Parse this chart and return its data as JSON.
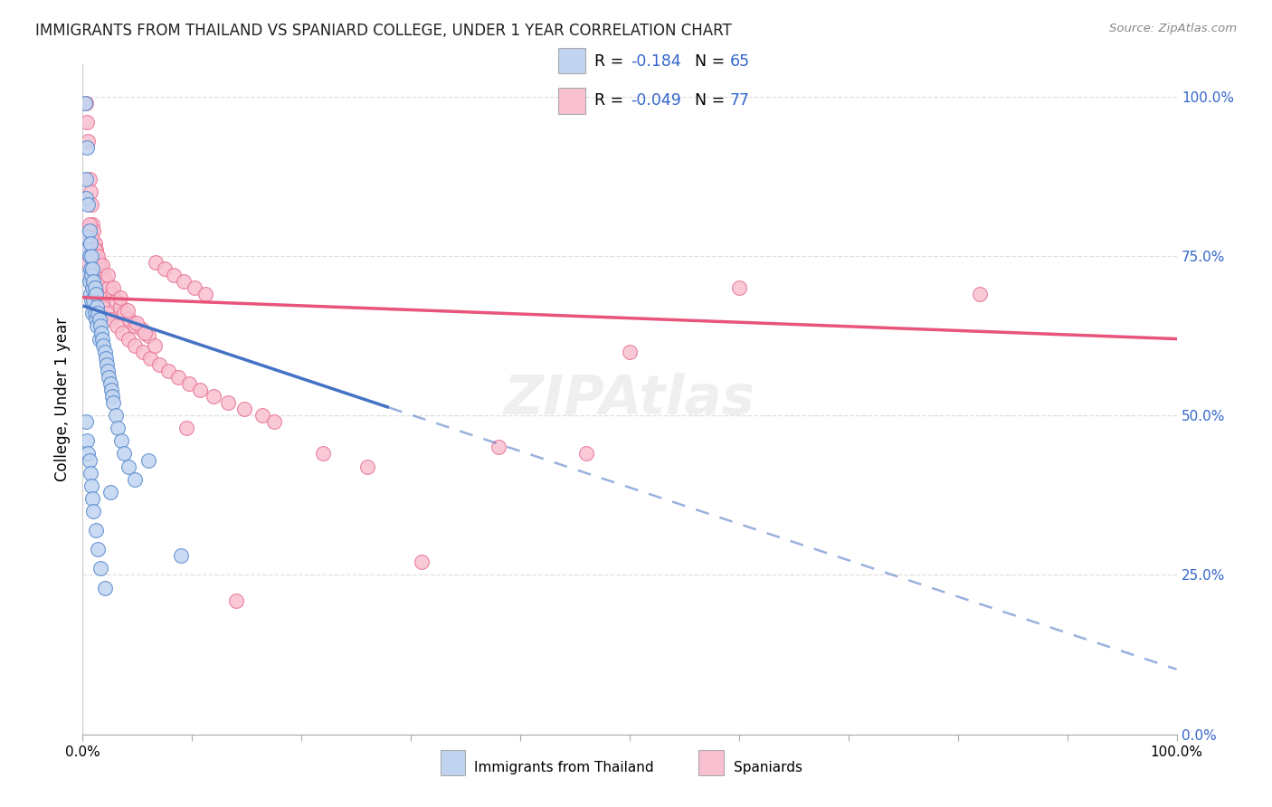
{
  "title": "IMMIGRANTS FROM THAILAND VS SPANIARD COLLEGE, UNDER 1 YEAR CORRELATION CHART",
  "source": "Source: ZipAtlas.com",
  "ylabel": "College, Under 1 year",
  "right_yticks": [
    0.0,
    0.25,
    0.5,
    0.75,
    1.0
  ],
  "right_yticklabels": [
    "0.0%",
    "25.0%",
    "50.0%",
    "75.0%",
    "100.0%"
  ],
  "xlim": [
    0.0,
    1.0
  ],
  "ylim": [
    0.0,
    1.05
  ],
  "thailand_R": "-0.184",
  "thailand_N": "65",
  "spaniard_R": "-0.049",
  "spaniard_N": "77",
  "thailand_line_color": "#4472c4",
  "spaniard_line_color": "#e8547a",
  "thailand_scatter_facecolor": "#c0d4f0",
  "thailand_scatter_edgecolor": "#5588cc",
  "spaniard_scatter_facecolor": "#f8c0d0",
  "spaniard_scatter_edgecolor": "#e87090",
  "background_color": "#ffffff",
  "grid_color": "#e0e0e0",
  "title_color": "#222222",
  "right_axis_color": "#3366cc",
  "thailand_x": [
    0.002,
    0.003,
    0.003,
    0.004,
    0.004,
    0.005,
    0.005,
    0.005,
    0.006,
    0.006,
    0.006,
    0.007,
    0.007,
    0.007,
    0.008,
    0.008,
    0.008,
    0.009,
    0.009,
    0.009,
    0.01,
    0.01,
    0.011,
    0.011,
    0.012,
    0.012,
    0.013,
    0.013,
    0.014,
    0.015,
    0.015,
    0.016,
    0.017,
    0.018,
    0.019,
    0.02,
    0.021,
    0.022,
    0.023,
    0.024,
    0.025,
    0.026,
    0.027,
    0.028,
    0.03,
    0.032,
    0.035,
    0.038,
    0.042,
    0.048,
    0.003,
    0.004,
    0.005,
    0.006,
    0.007,
    0.008,
    0.009,
    0.01,
    0.012,
    0.014,
    0.016,
    0.02,
    0.025,
    0.06,
    0.09
  ],
  "thailand_y": [
    0.99,
    0.87,
    0.84,
    0.92,
    0.78,
    0.83,
    0.76,
    0.72,
    0.79,
    0.75,
    0.71,
    0.77,
    0.73,
    0.69,
    0.75,
    0.72,
    0.68,
    0.73,
    0.7,
    0.66,
    0.71,
    0.68,
    0.7,
    0.66,
    0.69,
    0.65,
    0.67,
    0.64,
    0.66,
    0.65,
    0.62,
    0.64,
    0.63,
    0.62,
    0.61,
    0.6,
    0.59,
    0.58,
    0.57,
    0.56,
    0.55,
    0.54,
    0.53,
    0.52,
    0.5,
    0.48,
    0.46,
    0.44,
    0.42,
    0.4,
    0.49,
    0.46,
    0.44,
    0.43,
    0.41,
    0.39,
    0.37,
    0.35,
    0.32,
    0.29,
    0.26,
    0.23,
    0.38,
    0.43,
    0.28
  ],
  "spaniard_x": [
    0.003,
    0.004,
    0.005,
    0.006,
    0.007,
    0.008,
    0.009,
    0.01,
    0.011,
    0.012,
    0.013,
    0.015,
    0.017,
    0.019,
    0.021,
    0.024,
    0.027,
    0.03,
    0.034,
    0.038,
    0.043,
    0.048,
    0.054,
    0.06,
    0.067,
    0.075,
    0.083,
    0.092,
    0.102,
    0.112,
    0.003,
    0.005,
    0.007,
    0.009,
    0.012,
    0.015,
    0.018,
    0.022,
    0.026,
    0.031,
    0.036,
    0.042,
    0.048,
    0.055,
    0.062,
    0.07,
    0.078,
    0.087,
    0.097,
    0.107,
    0.12,
    0.133,
    0.148,
    0.164,
    0.006,
    0.008,
    0.011,
    0.014,
    0.018,
    0.023,
    0.028,
    0.034,
    0.041,
    0.049,
    0.057,
    0.066,
    0.82,
    0.5,
    0.38,
    0.6,
    0.26,
    0.31,
    0.175,
    0.22,
    0.46,
    0.14,
    0.095
  ],
  "spaniard_y": [
    0.99,
    0.96,
    0.93,
    0.87,
    0.85,
    0.83,
    0.8,
    0.79,
    0.77,
    0.76,
    0.75,
    0.74,
    0.73,
    0.72,
    0.71,
    0.7,
    0.69,
    0.68,
    0.67,
    0.66,
    0.65,
    0.64,
    0.635,
    0.625,
    0.74,
    0.73,
    0.72,
    0.71,
    0.7,
    0.69,
    0.76,
    0.74,
    0.72,
    0.71,
    0.695,
    0.685,
    0.67,
    0.66,
    0.65,
    0.64,
    0.63,
    0.62,
    0.61,
    0.6,
    0.59,
    0.58,
    0.57,
    0.56,
    0.55,
    0.54,
    0.53,
    0.52,
    0.51,
    0.5,
    0.8,
    0.78,
    0.76,
    0.75,
    0.735,
    0.72,
    0.7,
    0.685,
    0.665,
    0.645,
    0.63,
    0.61,
    0.69,
    0.6,
    0.45,
    0.7,
    0.42,
    0.27,
    0.49,
    0.44,
    0.44,
    0.21,
    0.48
  ],
  "xticks": [
    0.0,
    0.1,
    0.2,
    0.3,
    0.4,
    0.5,
    0.6,
    0.7,
    0.8,
    0.9,
    1.0
  ]
}
